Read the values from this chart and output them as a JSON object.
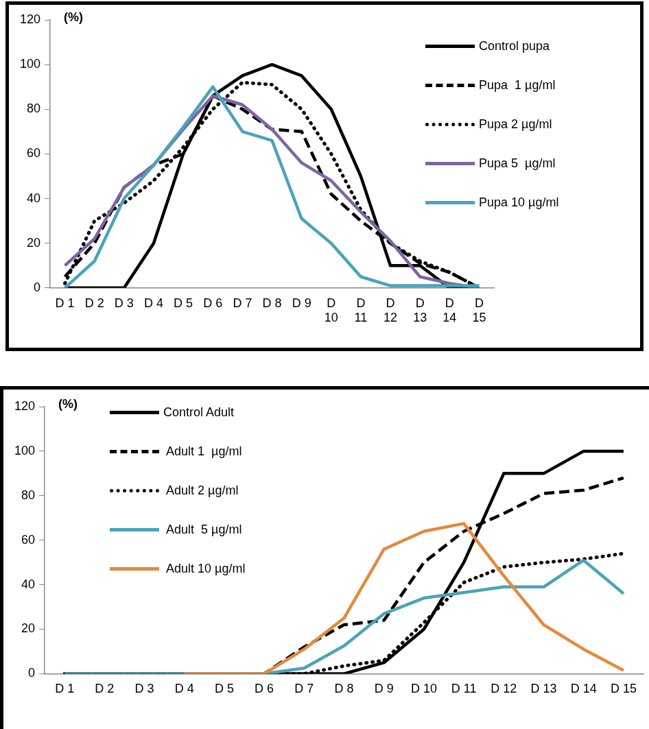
{
  "chart_data": [
    {
      "type": "line",
      "ylabel": "(%)",
      "categories": [
        "D 1",
        "D 2",
        "D 3",
        "D 4",
        "D 5",
        "D 6",
        "D 7",
        "D 8",
        "D 9",
        "D 10",
        "D 11",
        "D 12",
        "D 13",
        "D 14",
        "D 15"
      ],
      "ylim": [
        0,
        120
      ],
      "yticks": [
        0,
        20,
        40,
        60,
        80,
        100,
        120
      ],
      "grid": false,
      "legend": "top right",
      "marker": "none",
      "series": [
        {
          "name": "Control pupa",
          "color": "#000000",
          "line_style": "solid",
          "values": [
            0,
            0,
            0,
            20,
            60,
            86,
            95,
            100,
            95,
            80,
            50,
            10,
            10,
            0,
            0
          ]
        },
        {
          "name": "Pupa  1 µg/ml",
          "color": "#000000",
          "line_style": "dashed",
          "values": [
            5,
            20,
            45,
            55,
            60,
            86,
            80,
            71,
            70,
            42,
            30,
            20,
            11,
            7,
            0
          ]
        },
        {
          "name": "Pupa 2 µg/ml",
          "color": "#000000",
          "line_style": "dotted",
          "values": [
            2,
            30,
            38,
            48,
            63,
            80,
            92,
            91,
            80,
            60,
            35,
            20,
            12,
            7,
            0
          ]
        },
        {
          "name": "Pupa 5  µg/ml",
          "color": "#8064a2",
          "line_style": "solid",
          "values": [
            10,
            22,
            45,
            55,
            71,
            86,
            82,
            71,
            56,
            48,
            34,
            21,
            5,
            2,
            0
          ]
        },
        {
          "name": "Pupa 10 µg/ml",
          "color": "#4aa3ba",
          "line_style": "solid",
          "values": [
            0,
            12,
            40,
            55,
            72,
            90,
            70,
            66,
            31,
            20,
            5,
            1,
            1,
            1,
            1
          ]
        }
      ]
    },
    {
      "type": "line",
      "ylabel": "(%)",
      "categories": [
        "D 1",
        "D 2",
        "D 3",
        "D 4",
        "D 5",
        "D 6",
        "D 7",
        "D 8",
        "D 9",
        "D 10",
        "D 11",
        "D 12",
        "D 13",
        "D 14",
        "D 15"
      ],
      "ylim": [
        0,
        120
      ],
      "yticks": [
        0,
        20,
        40,
        60,
        80,
        100,
        120
      ],
      "grid": false,
      "legend": "top left",
      "marker": "none",
      "series": [
        {
          "name": "Control Adult",
          "color": "#000000",
          "line_style": "solid",
          "values": [
            0,
            0,
            0,
            0,
            0,
            0,
            0,
            0,
            5,
            20,
            50,
            90,
            90,
            100,
            100
          ]
        },
        {
          "name": " Adult 1  µg/ml",
          "color": "#000000",
          "line_style": "dashed",
          "values": [
            0,
            0,
            0,
            0,
            0,
            0,
            12,
            22,
            24,
            50,
            64,
            72,
            81,
            82.5,
            88
          ]
        },
        {
          "name": " Adult 2 µg/ml",
          "color": "#000000",
          "line_style": "dotted",
          "values": [
            0,
            0,
            0,
            0,
            0,
            0,
            0,
            3.5,
            6,
            23,
            41,
            48,
            50,
            51.5,
            54
          ]
        },
        {
          "name": " Adult  5 µg/ml",
          "color": "#4aa3ba",
          "line_style": "solid",
          "values": [
            0,
            0,
            0,
            0,
            0,
            0,
            2.5,
            12.5,
            27,
            34,
            36.5,
            39,
            39,
            51,
            36
          ]
        },
        {
          "name": " Adult 10 µg/ml",
          "color": "#e38a3c",
          "line_style": "solid",
          "values": [
            null,
            null,
            null,
            0,
            0,
            0,
            11,
            25,
            56,
            64,
            67.5,
            44,
            22,
            11,
            1.5
          ]
        }
      ]
    }
  ]
}
